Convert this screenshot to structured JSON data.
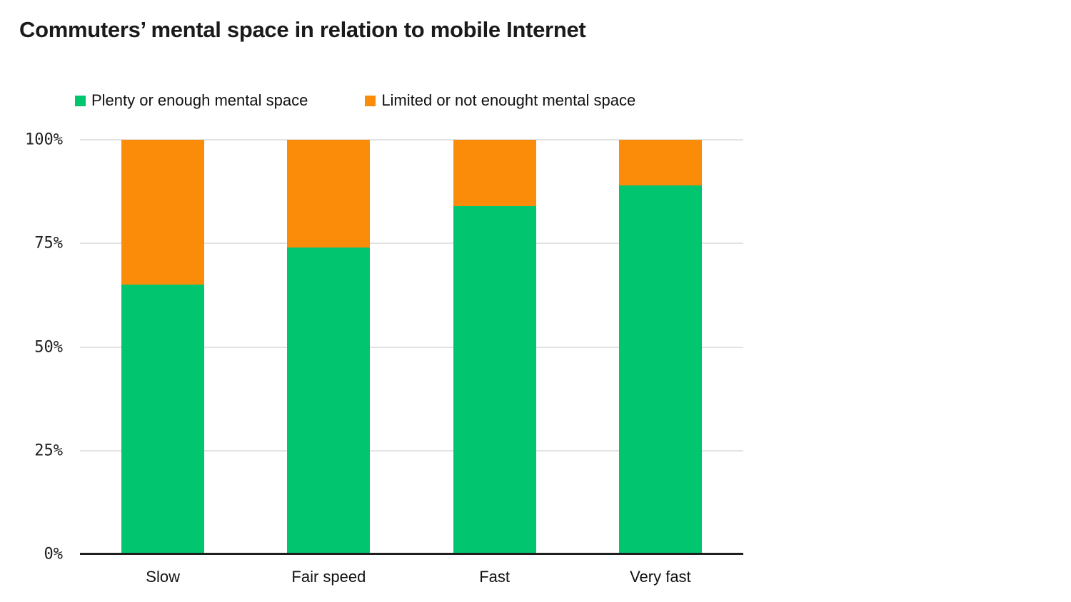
{
  "title": "Commuters’ mental space in relation to mobile Internet",
  "colors": {
    "green": "#02C56F",
    "orange": "#FB8C0A",
    "gridline": "#e2e2e2",
    "axis": "#1f1f1f",
    "text": "#1a1a1a"
  },
  "legend": {
    "items": [
      {
        "label": "Plenty or enough mental space",
        "color": "#02C56F"
      },
      {
        "label": "Limited or not enought mental space",
        "color": "#FB8C0A"
      }
    ]
  },
  "chart_data": {
    "type": "bar",
    "stacked": true,
    "title": "Commuters’ mental space in relation to mobile Internet",
    "xlabel": "",
    "ylabel": "",
    "categories": [
      "Slow",
      "Fair speed",
      "Fast",
      "Very fast"
    ],
    "series": [
      {
        "name": "Plenty or enough mental space",
        "color": "#02C56F",
        "values": [
          65,
          74,
          84,
          89
        ]
      },
      {
        "name": "Limited or not enought mental space",
        "color": "#FB8C0A",
        "values": [
          35,
          26,
          16,
          11
        ]
      }
    ],
    "ylim": [
      0,
      100
    ],
    "y_ticks": [
      {
        "value": 0,
        "label": "0%"
      },
      {
        "value": 25,
        "label": "25%"
      },
      {
        "value": 50,
        "label": "50%"
      },
      {
        "value": 75,
        "label": "75%"
      },
      {
        "value": 100,
        "label": "100%"
      }
    ],
    "grid": true,
    "legend_position": "top-left"
  }
}
